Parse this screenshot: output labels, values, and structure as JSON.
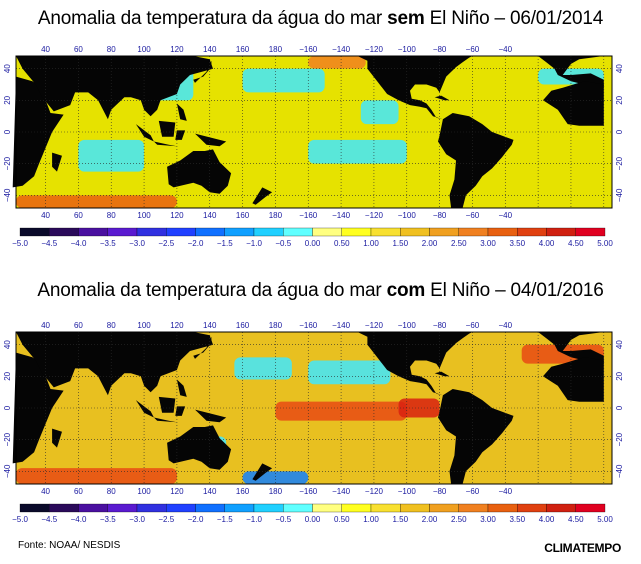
{
  "maps": [
    {
      "title_pre": "Anomalia da temperatura da água do mar ",
      "title_bold": "sem",
      "title_post": " El Niño – 06/01/2014",
      "variant": "neutral"
    },
    {
      "title_pre": "Anomalia da temperatura da água do mar ",
      "title_bold": "com",
      "title_post": " El Niño – 04/01/2016",
      "variant": "elnino"
    }
  ],
  "lon_labels": [
    "40",
    "60",
    "80",
    "100",
    "120",
    "140",
    "160",
    "180",
    "−160",
    "−140",
    "−120",
    "−100",
    "−80",
    "−60",
    "−40"
  ],
  "lat_labels": [
    "40",
    "20",
    "0",
    "−20",
    "−40"
  ],
  "scale": {
    "labels": [
      "−5.0",
      "−4.5",
      "−4.0",
      "−3.5",
      "−3.0",
      "−2.5",
      "−2.0",
      "−1.5",
      "−1.0",
      "−0.5",
      "0.00",
      "0.50",
      "1.00",
      "1.50",
      "2.00",
      "2.50",
      "3.00",
      "3.50",
      "4.00",
      "4.50",
      "5.00"
    ],
    "colors": [
      "#0a0a2a",
      "#2a0a5a",
      "#4a10a0",
      "#5a1ad0",
      "#3030e0",
      "#2040ff",
      "#1070ff",
      "#10a0ff",
      "#20d0ff",
      "#60ffff",
      "#ffff80",
      "#ffff20",
      "#f8e030",
      "#f0c020",
      "#f0a020",
      "#f08020",
      "#e86010",
      "#e04010",
      "#d02010",
      "#e00020"
    ]
  },
  "colors": {
    "land": "#050505",
    "ocean_neutral": "#e6e200",
    "ocean_warm": "#e8c020",
    "ocean_hot": "#e84a14",
    "cool": "#40e8ff",
    "cool_deep": "#1080ff",
    "grid": "#2a2a2a"
  },
  "footer": {
    "source": "Fonte: NOAA/ NESDIS",
    "logo": "CLIMATEMPO"
  }
}
